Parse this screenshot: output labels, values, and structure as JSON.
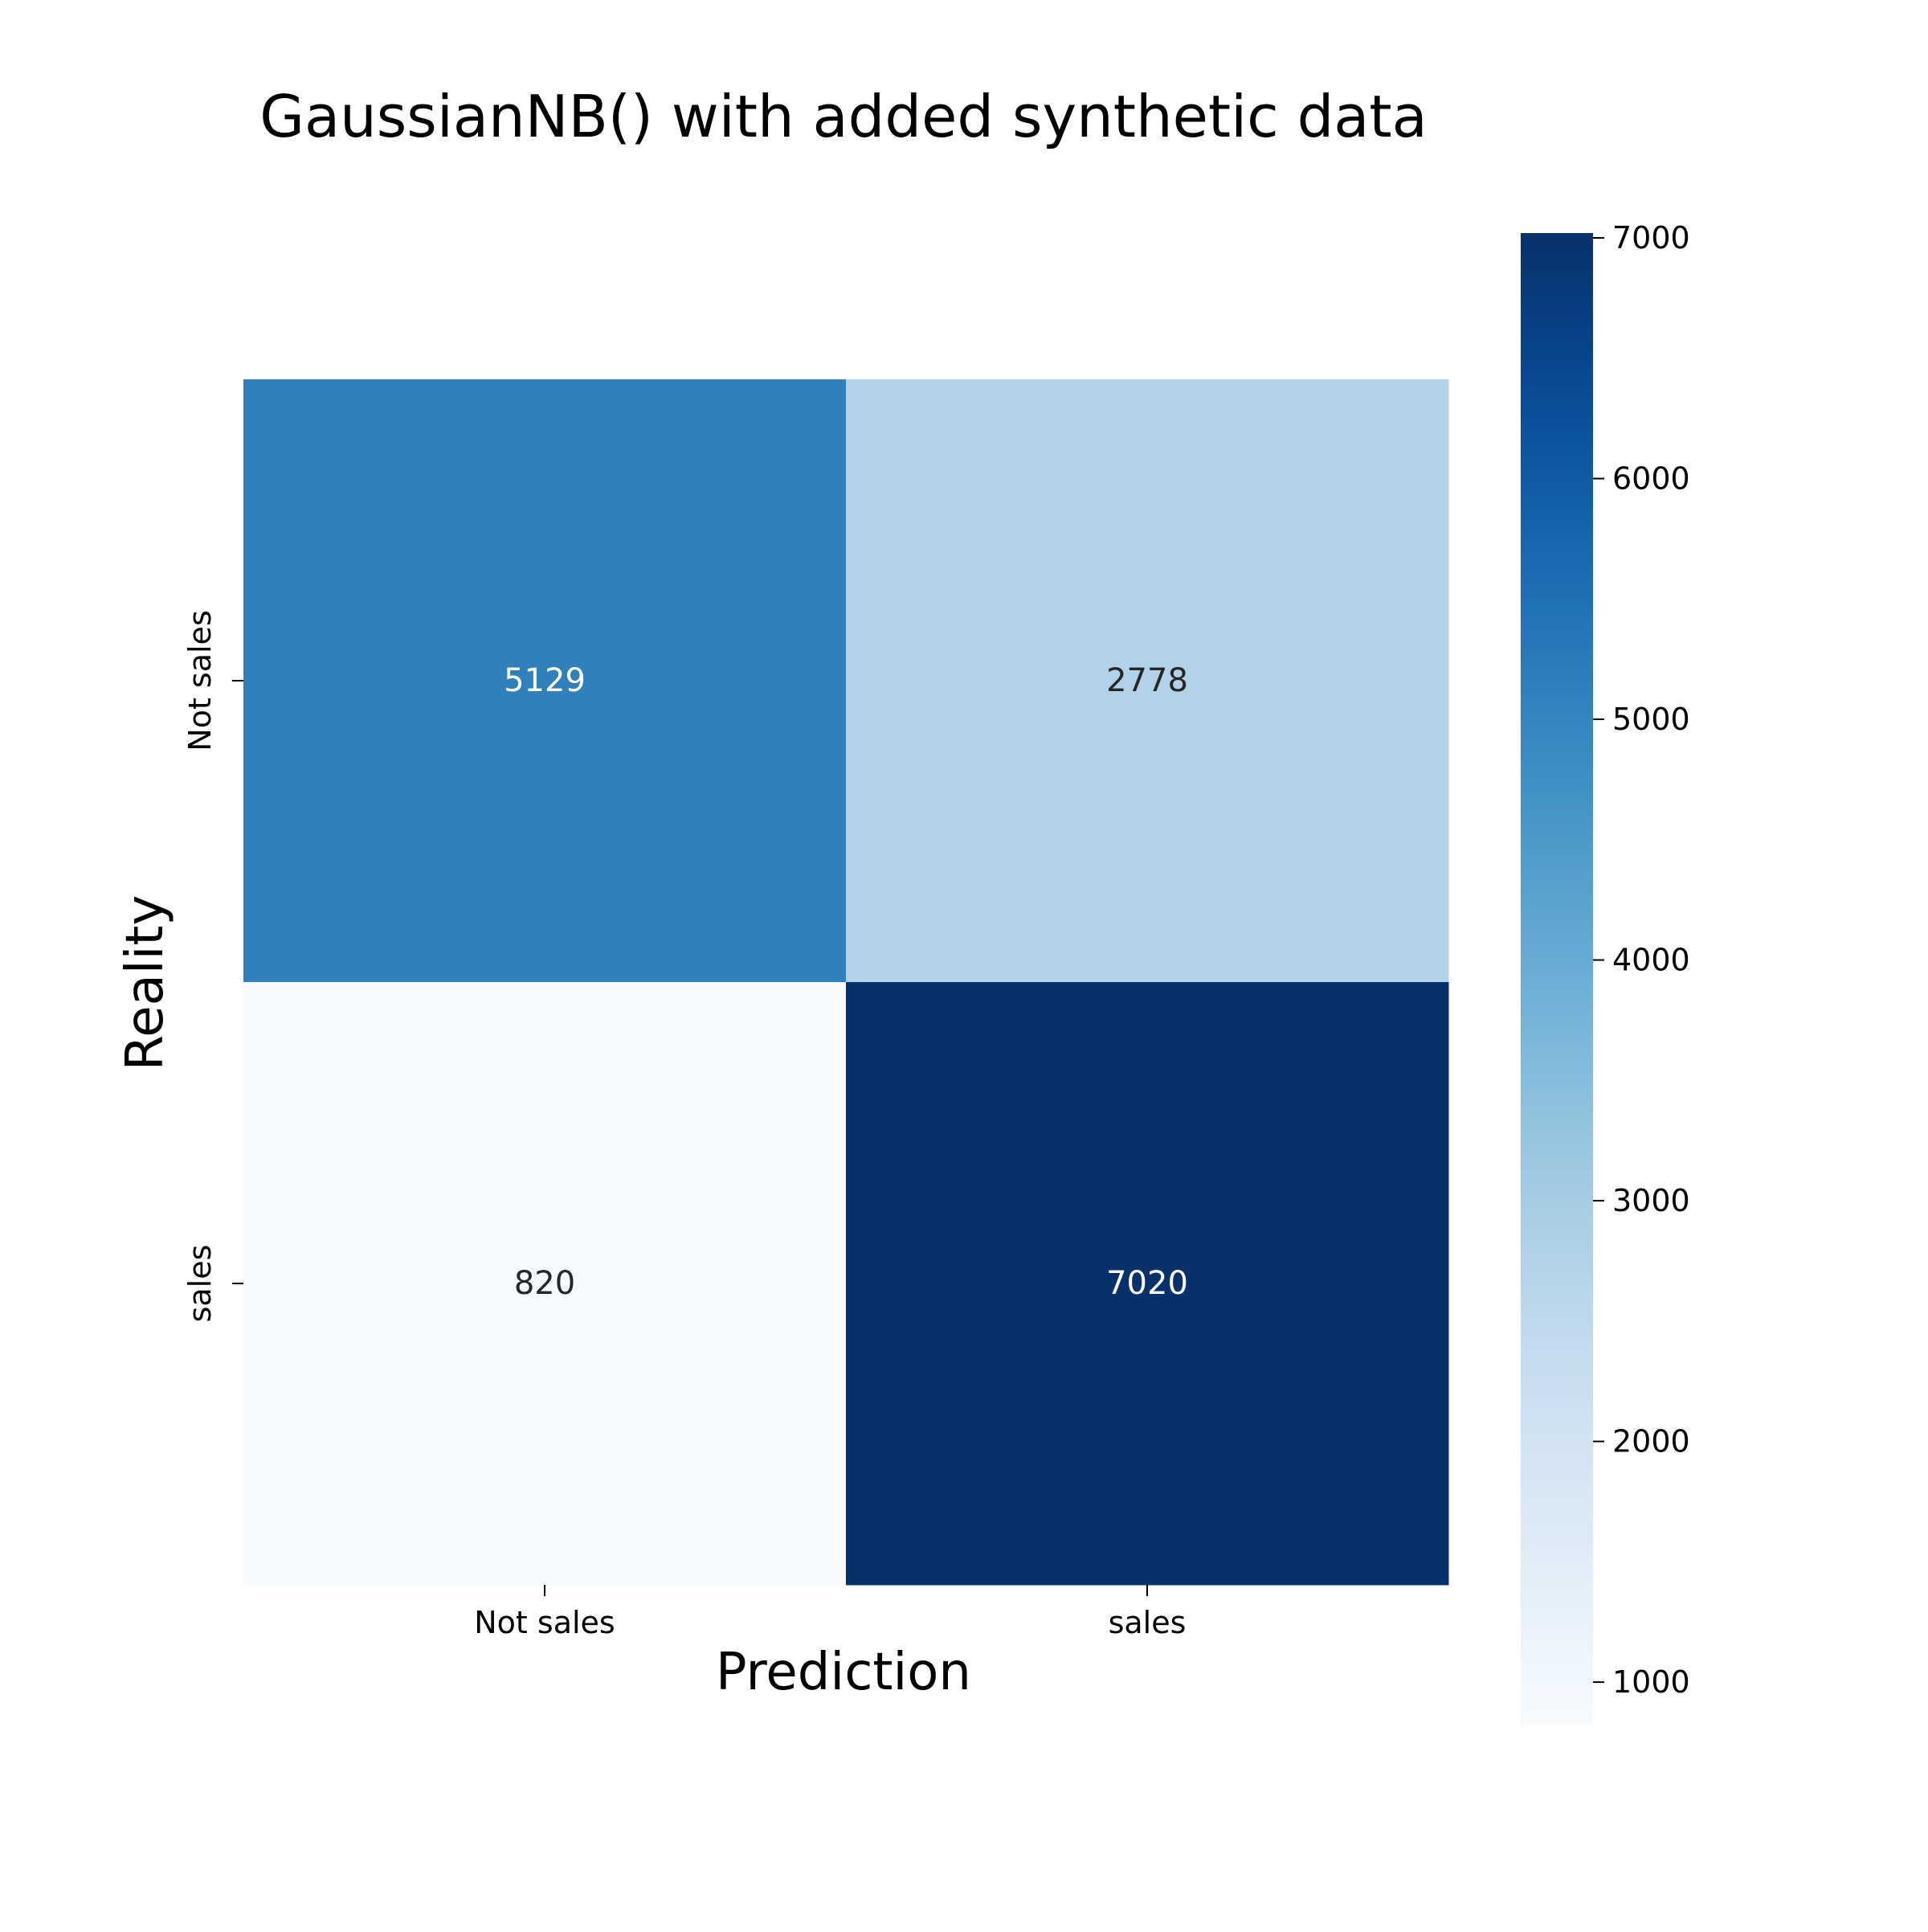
{
  "chart_data": {
    "type": "heatmap",
    "title": "GaussianNB() with added synthetic data",
    "xlabel": "Prediction",
    "ylabel": "Reality",
    "x_categories": [
      "Not sales",
      "sales"
    ],
    "y_categories": [
      "Not sales",
      "sales"
    ],
    "values": [
      [
        5129,
        2778
      ],
      [
        820,
        7020
      ]
    ],
    "colormap": "Blues",
    "colorbar": {
      "range": [
        820,
        7020
      ],
      "ticks": [
        1000,
        2000,
        3000,
        4000,
        5000,
        6000,
        7000
      ]
    },
    "grid": false,
    "legend": "colorbar-right"
  }
}
